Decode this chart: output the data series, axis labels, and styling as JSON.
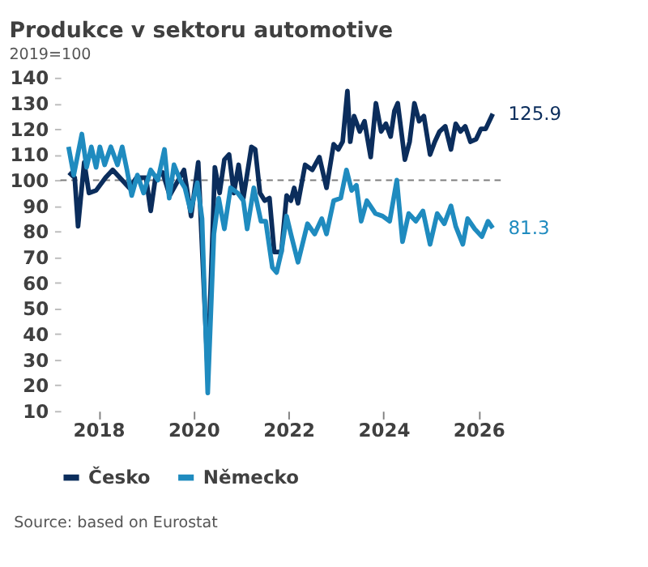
{
  "chart_data": {
    "type": "line",
    "title": "Produkce v sektoru automotive",
    "subtitle": "2019=100",
    "annotations": [
      "Source: based on Eurostat"
    ],
    "xlim": [
      2017.2,
      2026.5
    ],
    "xticks": [
      2018,
      2020,
      2022,
      2024,
      2026
    ],
    "ylim": [
      10,
      140
    ],
    "yticks": [
      10,
      20,
      30,
      40,
      50,
      60,
      70,
      80,
      90,
      100,
      110,
      120,
      130,
      140
    ],
    "grid": false,
    "legend": "bottom",
    "line_style": "solid",
    "marker": "none",
    "ref_lines": [
      {
        "axis": "y",
        "value": 100,
        "color": "#7f7f7f",
        "line_style": "dashed"
      }
    ],
    "series": [
      {
        "name": "Česko",
        "color": "#0b2d5c",
        "x": [
          2017.38,
          2017.5,
          2017.57,
          2017.7,
          2017.8,
          2017.95,
          2018.15,
          2018.3,
          2018.5,
          2018.65,
          2018.8,
          2019.0,
          2019.1,
          2019.2,
          2019.35,
          2019.5,
          2019.65,
          2019.8,
          2019.95,
          2020.1,
          2020.3,
          2020.45,
          2020.55,
          2020.65,
          2020.75,
          2020.85,
          2020.95,
          2021.05,
          2021.22,
          2021.3,
          2021.4,
          2021.5,
          2021.6,
          2021.7,
          2021.85,
          2021.96,
          2022.05,
          2022.12,
          2022.2,
          2022.35,
          2022.5,
          2022.65,
          2022.8,
          2022.95,
          2023.05,
          2023.14,
          2023.24,
          2023.3,
          2023.38,
          2023.5,
          2023.6,
          2023.73,
          2023.84,
          2023.95,
          2024.05,
          2024.15,
          2024.23,
          2024.3,
          2024.45,
          2024.55,
          2024.65,
          2024.75,
          2024.85,
          2024.98,
          2025.08,
          2025.18,
          2025.3,
          2025.42,
          2025.52,
          2025.62,
          2025.72,
          2025.83,
          2025.95,
          2026.05,
          2026.15,
          2026.3
        ],
        "values": [
          103,
          101,
          82,
          107,
          95,
          96,
          101,
          104,
          100,
          97,
          101,
          101,
          88,
          101,
          103,
          94,
          99,
          104,
          86,
          107,
          25,
          105,
          95,
          108,
          110,
          95,
          106,
          93,
          113,
          112,
          95,
          92,
          93,
          72,
          72,
          94,
          92,
          97,
          91,
          106,
          104,
          109,
          97,
          114,
          112,
          115,
          134.8,
          115,
          125,
          119,
          123,
          109,
          130,
          119,
          122,
          117,
          127,
          130,
          108,
          115,
          130,
          123,
          125,
          110,
          115,
          119,
          121,
          112,
          122,
          119,
          121,
          115,
          116,
          120,
          120,
          125.9
        ],
        "value_labels": [
          null,
          null,
          null,
          null,
          null,
          null,
          null,
          null,
          null,
          null,
          null,
          null,
          null,
          null,
          null,
          null,
          null,
          null,
          null,
          null,
          null,
          null,
          null,
          null,
          null,
          null,
          null,
          null,
          null,
          null,
          null,
          null,
          null,
          null,
          null,
          null,
          null,
          null,
          null,
          null,
          null,
          null,
          null,
          null,
          null,
          null,
          null,
          null,
          null,
          null,
          null,
          null,
          null,
          null,
          null,
          null,
          null,
          null,
          null,
          null,
          null,
          null,
          null,
          null,
          null,
          null,
          null,
          null,
          null,
          null,
          null,
          null,
          null,
          null,
          null,
          "125.9"
        ]
      },
      {
        "name": "Německo",
        "color": "#1f8bbf",
        "x": [
          2017.37,
          2017.48,
          2017.65,
          2017.75,
          2017.85,
          2017.95,
          2018.03,
          2018.13,
          2018.26,
          2018.4,
          2018.5,
          2018.6,
          2018.7,
          2018.82,
          2018.95,
          2019.1,
          2019.25,
          2019.39,
          2019.49,
          2019.59,
          2019.72,
          2019.82,
          2019.94,
          2020.08,
          2020.18,
          2020.3,
          2020.43,
          2020.53,
          2020.65,
          2020.78,
          2020.93,
          2021.05,
          2021.13,
          2021.27,
          2021.42,
          2021.52,
          2021.66,
          2021.75,
          2021.85,
          2021.96,
          2022.05,
          2022.2,
          2022.4,
          2022.55,
          2022.7,
          2022.8,
          2022.95,
          2023.1,
          2023.22,
          2023.33,
          2023.43,
          2023.53,
          2023.65,
          2023.83,
          2023.98,
          2024.13,
          2024.28,
          2024.4,
          2024.53,
          2024.68,
          2024.83,
          2024.98,
          2025.13,
          2025.28,
          2025.42,
          2025.52,
          2025.67,
          2025.77,
          2025.92,
          2026.07,
          2026.2,
          2026.3
        ],
        "values": [
          113,
          102,
          118,
          105,
          113,
          105,
          113,
          106,
          113,
          106,
          113,
          104,
          94,
          102,
          95,
          104,
          100,
          112,
          93,
          106,
          100,
          97,
          88,
          99,
          85,
          17,
          79,
          93,
          81,
          97,
          95,
          92,
          81,
          97,
          84,
          84,
          66,
          64,
          72,
          86,
          79,
          68,
          83,
          79,
          85,
          79,
          92,
          93,
          104,
          96,
          98,
          84,
          92,
          87,
          86,
          84,
          100,
          76,
          87,
          84,
          88,
          75,
          87,
          83,
          90,
          82,
          75,
          85,
          81,
          78,
          84,
          81.3
        ],
        "value_labels": [
          null,
          null,
          null,
          null,
          null,
          null,
          null,
          null,
          null,
          null,
          null,
          null,
          null,
          null,
          null,
          null,
          null,
          null,
          null,
          null,
          null,
          null,
          null,
          null,
          null,
          null,
          null,
          null,
          null,
          null,
          null,
          null,
          null,
          null,
          null,
          null,
          null,
          null,
          null,
          null,
          null,
          null,
          null,
          null,
          null,
          null,
          null,
          null,
          null,
          null,
          null,
          null,
          null,
          null,
          null,
          null,
          null,
          null,
          null,
          null,
          null,
          null,
          null,
          null,
          null,
          null,
          null,
          null,
          null,
          null,
          null,
          "81.3"
        ]
      }
    ]
  }
}
